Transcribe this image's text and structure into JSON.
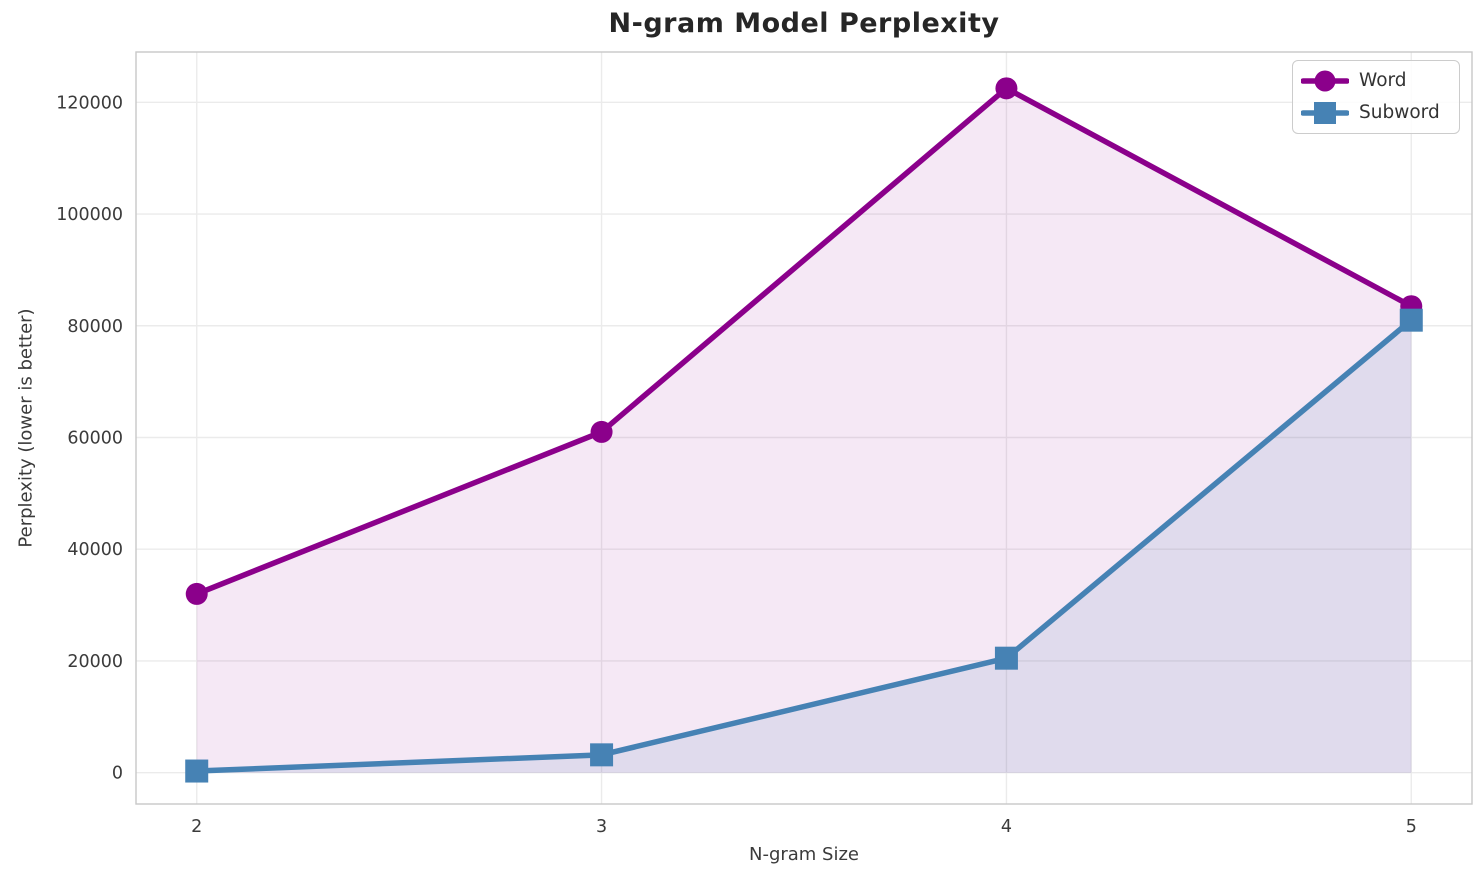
{
  "chart_data": {
    "type": "line",
    "title": "N-gram Model Perplexity",
    "xlabel": "N-gram Size",
    "ylabel": "Perplexity (lower is better)",
    "x": [
      2,
      3,
      4,
      5
    ],
    "series": [
      {
        "name": "Word",
        "marker": "circle",
        "color": "#8B008B",
        "fill_opacity": 0.09,
        "values": [
          32000,
          61000,
          122500,
          83500
        ]
      },
      {
        "name": "Subword",
        "marker": "square",
        "color": "#4682B4",
        "fill_opacity": 0.12,
        "values": [
          300,
          3200,
          20500,
          81000
        ]
      }
    ],
    "fill_baseline": 0,
    "xticks": [
      2,
      3,
      4,
      5
    ],
    "yticks": [
      0,
      20000,
      40000,
      60000,
      80000,
      100000,
      120000
    ],
    "xlim": [
      1.85,
      5.15
    ],
    "ylim": [
      -5600,
      129000
    ],
    "grid": true,
    "legend_position": "upper right",
    "grid_color": "#EBEBEB",
    "spine_color": "#C8C8C8",
    "tick_text_color": "#3b3b3b",
    "title_color": "#262626"
  }
}
